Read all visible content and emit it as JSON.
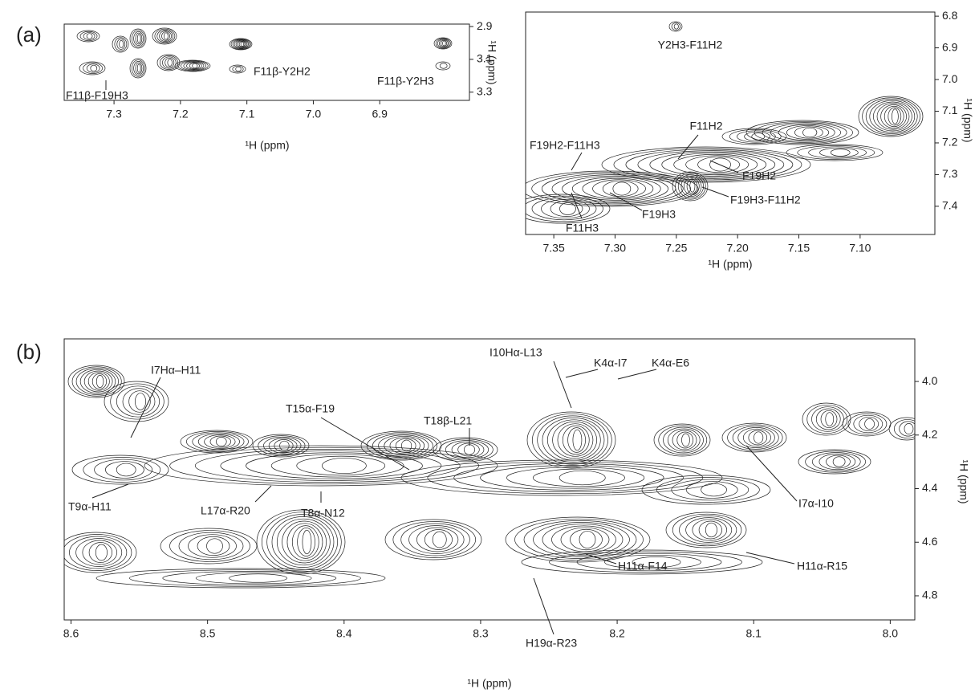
{
  "chart_data": [
    {
      "type": "contour",
      "panel_label": "(a)",
      "x_label": "¹H (ppm)",
      "y_label": "¹H (ppm)",
      "xlim": [
        7.375,
        6.765
      ],
      "ylim": [
        2.885,
        3.35
      ],
      "xticks": [
        7.3,
        7.2,
        7.1,
        {
          "value": 7,
          "label": "7.0"
        },
        6.9
      ],
      "yticks": [
        2.9,
        3.1,
        3.3
      ],
      "annotations": [
        "F11β-F19H3",
        "F11β-Y2H2",
        "F11β-Y2H3"
      ]
    },
    {
      "type": "contour",
      "x_label": "¹H  (ppm)",
      "y_label": "¹H (ppm)",
      "xlim": [
        7.373,
        7.039
      ],
      "ylim": [
        6.787,
        7.489
      ],
      "xticks": [
        7.35,
        {
          "value": 7.3,
          "label": "7.30"
        },
        7.25,
        {
          "value": 7.2,
          "label": "7.20"
        },
        7.15,
        {
          "value": 7.1,
          "label": "7.10"
        }
      ],
      "yticks": [
        6.8,
        6.9,
        {
          "value": 7,
          "label": "7.0"
        },
        7.1,
        7.2,
        7.3,
        7.4
      ],
      "annotations": [
        "Y2H3-F11H2",
        "F11H2",
        "F19H2-F11H3",
        "F19H2",
        "F19H3-F11H2",
        "F19H3",
        "F11H3"
      ]
    },
    {
      "type": "contour",
      "panel_label": "(b)",
      "x_label": "¹H (ppm)",
      "y_label": "¹H (ppm)",
      "xlim": [
        8.605,
        7.982
      ],
      "ylim": [
        3.841,
        4.89
      ],
      "xticks": [
        8.6,
        8.5,
        8.4,
        8.3,
        8.2,
        8.1,
        {
          "value": 8,
          "label": "8.0"
        }
      ],
      "yticks": [
        {
          "value": 4,
          "label": "4.0"
        },
        4.2,
        4.4,
        4.6,
        4.8
      ],
      "annotations": [
        "I7Hα–H11",
        "T15α-F19",
        "T18β-L21",
        "I10Hα-L13",
        "K4α-I7",
        "K4α-E6",
        "T9α-H11",
        "L17α-R20",
        "T8α-N12",
        "I7α-I10",
        "H11α-F14",
        "H11α-R15",
        "H19α-R23"
      ]
    }
  ]
}
